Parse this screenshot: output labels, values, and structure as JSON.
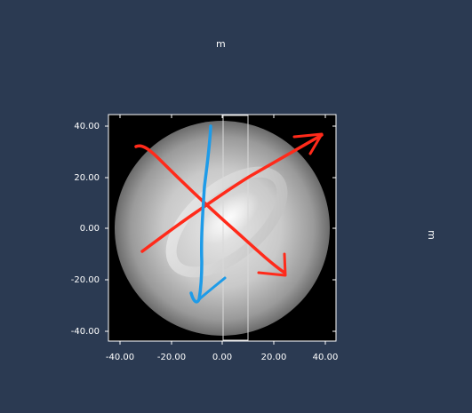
{
  "axis_unit_x": "m",
  "axis_unit_y": "m",
  "y_ticks": [
    "40.00",
    "20.00",
    "0.00",
    "-20.00",
    "-40.00"
  ],
  "x_ticks": [
    "-40.00",
    "-20.00",
    "0.00",
    "20.00",
    "40.00"
  ],
  "colors": {
    "background": "#2b3a52",
    "plot_background": "#000000",
    "annotation_red": "#ff2a1a",
    "annotation_blue": "#1e9be8",
    "selection_box": "#d9d9d9"
  },
  "annotations": [
    {
      "name": "red-diagonal-arrow-1",
      "color": "annotation_red"
    },
    {
      "name": "red-diagonal-arrow-2",
      "color": "annotation_red"
    },
    {
      "name": "blue-vertical-stroke",
      "color": "annotation_blue"
    }
  ]
}
